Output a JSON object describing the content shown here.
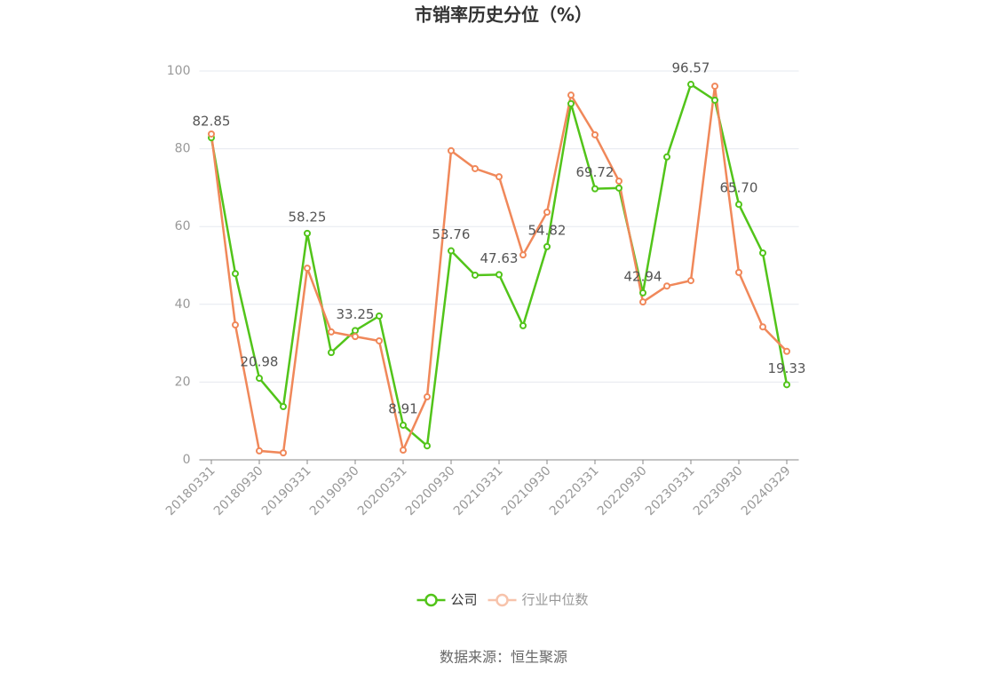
{
  "chart_data": {
    "type": "line",
    "title": "市销率历史分位（%）",
    "source": "数据来源：恒生聚源",
    "categories": [
      "20180331",
      null,
      "20180930",
      null,
      "20190331",
      null,
      "20190930",
      null,
      "20200331",
      null,
      "20200930",
      null,
      "20210331",
      null,
      "20210930",
      null,
      "20220331",
      null,
      "20220930",
      null,
      "20230331",
      null,
      "20230930",
      null,
      "20240329"
    ],
    "ylim": [
      0,
      100
    ],
    "yticks": [
      0,
      20,
      40,
      60,
      80,
      100
    ],
    "grid": true,
    "series": [
      {
        "name": "公司",
        "color": "#52c41a",
        "values": [
          82.85,
          47.9,
          20.98,
          13.7,
          58.25,
          27.6,
          33.25,
          37.0,
          8.91,
          3.6,
          53.76,
          47.5,
          47.63,
          34.5,
          54.82,
          91.6,
          69.72,
          69.9,
          42.94,
          77.9,
          96.57,
          92.5,
          65.7,
          53.2,
          19.33
        ],
        "value_labels": [
          "82.85",
          null,
          "20.98",
          null,
          "58.25",
          null,
          "33.25",
          null,
          "8.91",
          null,
          "53.76",
          null,
          "47.63",
          null,
          "54.82",
          null,
          "69.72",
          null,
          "42.94",
          null,
          "96.57",
          null,
          "65.70",
          null,
          "19.33"
        ]
      },
      {
        "name": "行业中位数",
        "color": "#f0885a",
        "values": [
          83.8,
          34.7,
          2.3,
          1.8,
          49.3,
          32.9,
          31.7,
          30.6,
          2.5,
          16.2,
          79.5,
          74.9,
          72.8,
          52.7,
          63.7,
          93.8,
          83.6,
          71.7,
          40.6,
          44.7,
          46.1,
          96.1,
          48.2,
          34.2,
          27.9
        ]
      }
    ]
  }
}
